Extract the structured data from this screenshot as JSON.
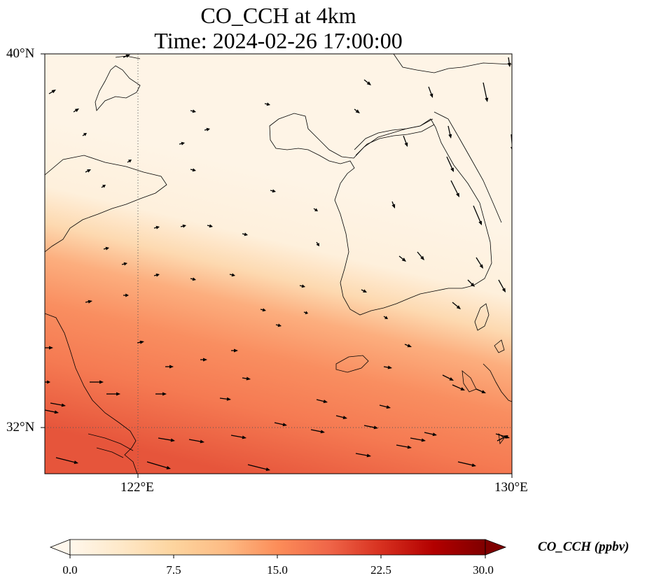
{
  "figure": {
    "title_line1": "CO_CCH at 4km",
    "title_line2": "Time: 2024-02-26 17:00:00"
  },
  "map": {
    "lat_ticks": [
      "40°N",
      "32°N"
    ],
    "lon_ticks": [
      "122°E",
      "130°E"
    ],
    "extent": {
      "lon_min": 120,
      "lon_max": 130,
      "lat_min": 31,
      "lat_max": 40
    },
    "gridlines": "dotted",
    "land_color": "#fdf2e3",
    "coastline_color": "#000000"
  },
  "colorbar": {
    "label": "CO_CCH (ppbv)",
    "ticks": [
      "0.0",
      "7.5",
      "15.0",
      "22.5",
      "30.0"
    ],
    "range": [
      0,
      30
    ],
    "colormap": "OrRd",
    "extend": "both"
  }
}
